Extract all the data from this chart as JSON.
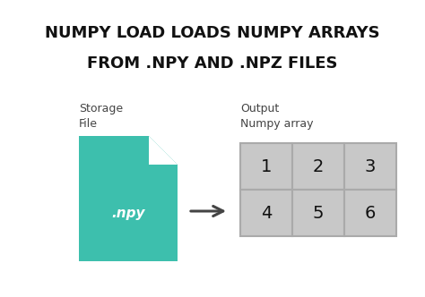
{
  "title_line1": "NUMPY LOAD LOADS NUMPY ARRAYS",
  "title_line2": "FROM .NPY AND .NPZ FILES",
  "title_fontsize": 13,
  "title_fontweight": "bold",
  "bg_color": "#ffffff",
  "label_left_line1": "Storage",
  "label_left_line2": "File",
  "label_right_line1": "Output",
  "label_right_line2": "Numpy array",
  "label_fontsize": 9,
  "file_color": "#3dbfad",
  "file_fold_color": "#ffffff",
  "file_text": ".npy",
  "file_text_color": "#ffffff",
  "file_text_fontsize": 11,
  "arrow_color": "#444444",
  "grid_bg": "#c8c8c8",
  "grid_line_color": "#aaaaaa",
  "grid_values": [
    [
      1,
      2,
      3
    ],
    [
      4,
      5,
      6
    ]
  ],
  "grid_fontsize": 14,
  "text_color": "#111111"
}
